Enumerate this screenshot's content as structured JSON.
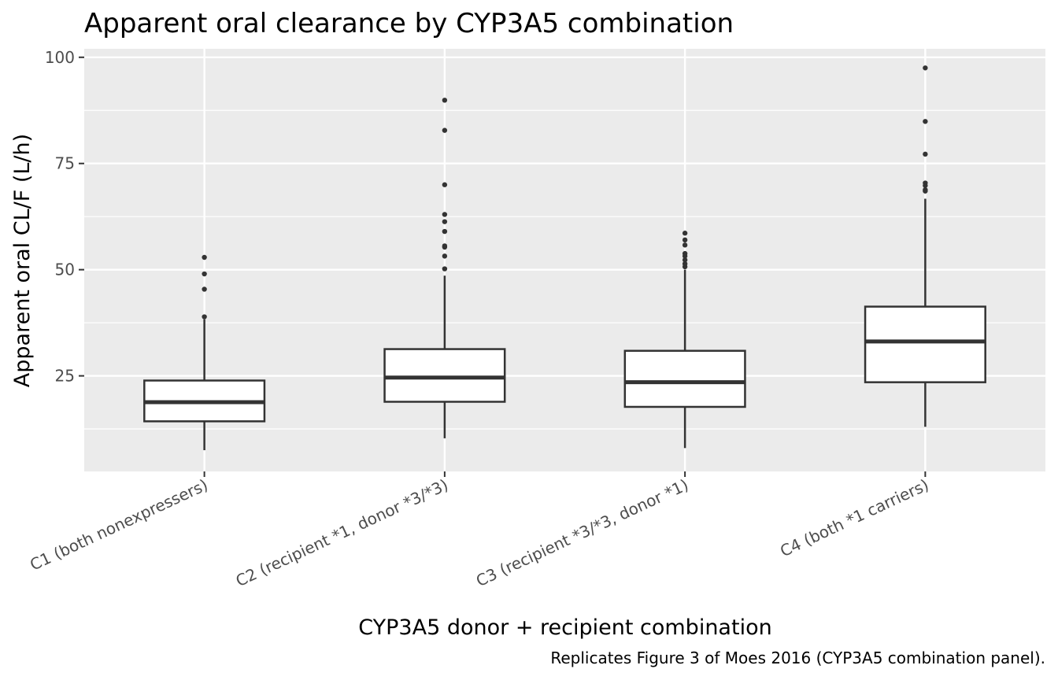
{
  "chart_data": {
    "type": "box",
    "title": "Apparent oral clearance by CYP3A5 combination",
    "xlabel": "CYP3A5 donor + recipient combination",
    "ylabel": "Apparent oral CL/F (L/h)",
    "caption": "Replicates Figure 3 of Moes 2016 (CYP3A5 combination panel).",
    "ylim": [
      2.5,
      102
    ],
    "yticks": [
      25,
      50,
      75,
      100
    ],
    "grid": true,
    "legend": "none",
    "colors": {
      "panel": "#ebebeb",
      "grid": "#ffffff",
      "box_fill": "#ffffff",
      "box_line": "#333333",
      "outlier": "#333333"
    },
    "categories": [
      "C1 (both nonexpressers)",
      "C2 (recipient *1, donor *3/*3)",
      "C3 (recipient *3/*3, donor *1)",
      "C4 (both *1 carriers)"
    ],
    "boxes": [
      {
        "category": "C1 (both nonexpressers)",
        "whisker_low": 7.5,
        "q1": 14.3,
        "median": 18.8,
        "q3": 23.9,
        "whisker_high": 38.3,
        "outliers": [
          38.9,
          45.4,
          49.0,
          52.9
        ]
      },
      {
        "category": "C2 (recipient *1, donor *3/*3)",
        "whisker_low": 10.3,
        "q1": 18.9,
        "median": 24.6,
        "q3": 31.3,
        "whisker_high": 48.6,
        "outliers": [
          50.2,
          53.2,
          55.3,
          55.6,
          59.0,
          61.3,
          63.0,
          70.0,
          82.8,
          89.9
        ]
      },
      {
        "category": "C3 (recipient *3/*3, donor *1)",
        "whisker_low": 8.0,
        "q1": 17.7,
        "median": 23.5,
        "q3": 30.9,
        "whisker_high": 50.0,
        "outliers": [
          50.7,
          51.4,
          52.3,
          53.2,
          53.8,
          55.8,
          57.0,
          58.6
        ]
      },
      {
        "category": "C4 (both *1 carriers)",
        "whisker_low": 13.0,
        "q1": 23.5,
        "median": 33.1,
        "q3": 41.3,
        "whisker_high": 66.7,
        "outliers": [
          68.5,
          68.8,
          69.8,
          70.4,
          77.2,
          84.9,
          97.5
        ]
      }
    ]
  }
}
